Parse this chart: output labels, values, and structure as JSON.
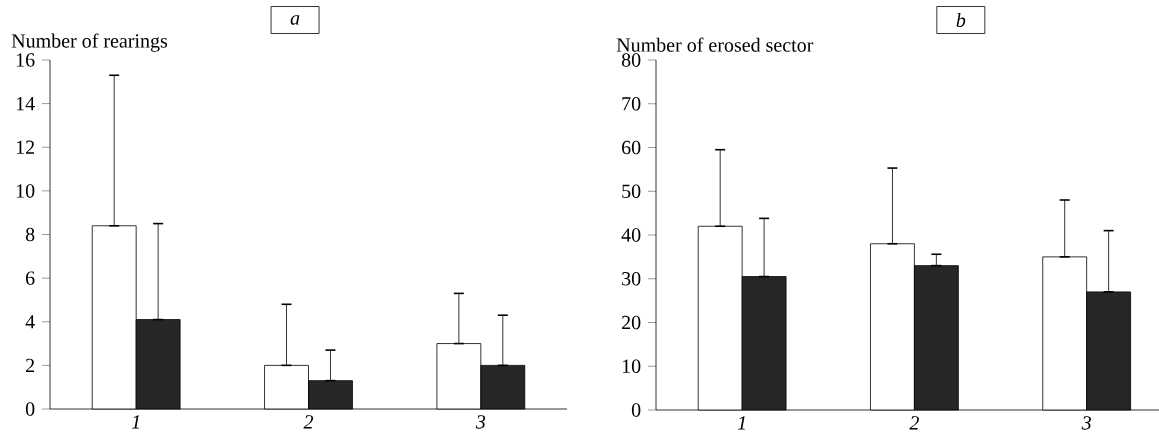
{
  "chart_data": [
    {
      "type": "bar",
      "title": "a",
      "ylabel": "Number of rearings",
      "categories": [
        "1",
        "2",
        "3"
      ],
      "series": [
        {
          "color": "#ffffff",
          "values": [
            8.4,
            2.0,
            3.0
          ],
          "errors": [
            [
              8.4,
              15.3
            ],
            [
              2.0,
              4.8
            ],
            [
              3.0,
              5.3
            ]
          ]
        },
        {
          "color": "#262626",
          "values": [
            4.1,
            1.3,
            2.0
          ],
          "errors": [
            [
              4.1,
              8.5
            ],
            [
              1.3,
              2.7
            ],
            [
              2.0,
              4.3
            ]
          ]
        }
      ],
      "ylim": [
        0,
        16
      ],
      "yticks": [
        0,
        2,
        4,
        6,
        8,
        10,
        12,
        14,
        16
      ]
    },
    {
      "type": "bar",
      "title": "b",
      "ylabel": "Number of erosed sector",
      "categories": [
        "1",
        "2",
        "3"
      ],
      "series": [
        {
          "color": "#ffffff",
          "values": [
            42,
            38,
            35
          ],
          "errors": [
            [
              42,
              59.5
            ],
            [
              38,
              55.3
            ],
            [
              35,
              48
            ]
          ]
        },
        {
          "color": "#262626",
          "values": [
            30.5,
            33,
            27
          ],
          "errors": [
            [
              30.5,
              43.8
            ],
            [
              33,
              35.6
            ],
            [
              27,
              41
            ]
          ]
        }
      ],
      "ylim": [
        0,
        80
      ],
      "yticks": [
        0,
        10,
        20,
        30,
        40,
        50,
        60,
        70,
        80
      ]
    }
  ]
}
